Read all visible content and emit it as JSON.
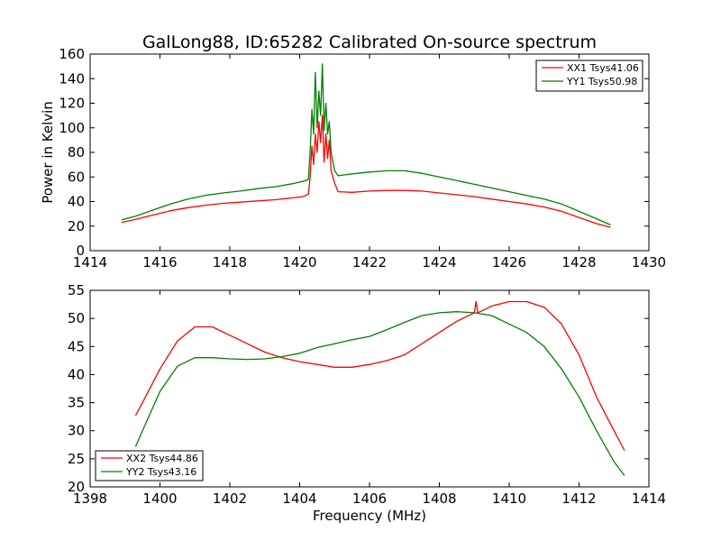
{
  "chart_data": [
    {
      "type": "line",
      "title": "GalLong88, ID:65282 Calibrated On-source spectrum",
      "xlabel": "",
      "ylabel": "Power in Kelvin",
      "xlim": [
        1414,
        1430
      ],
      "ylim": [
        0,
        160
      ],
      "xticks": [
        "1414",
        "1416",
        "1418",
        "1420",
        "1422",
        "1424",
        "1426",
        "1428",
        "1430"
      ],
      "yticks": [
        "0",
        "20",
        "40",
        "60",
        "80",
        "100",
        "120",
        "140",
        "160"
      ],
      "grid": false,
      "legend_position": "top-right",
      "series": [
        {
          "name": "XX1 Tsys41.06",
          "color": "#ff0000",
          "points": [
            [
              1414.9,
              23
            ],
            [
              1415.3,
              25.5
            ],
            [
              1415.8,
              29
            ],
            [
              1416.3,
              32.5
            ],
            [
              1416.8,
              35
            ],
            [
              1417.3,
              37
            ],
            [
              1417.8,
              38.5
            ],
            [
              1418.3,
              39.5
            ],
            [
              1418.8,
              40.5
            ],
            [
              1419.3,
              41.5
            ],
            [
              1419.8,
              43
            ],
            [
              1420.1,
              44
            ],
            [
              1420.25,
              46
            ],
            [
              1420.3,
              60
            ],
            [
              1420.35,
              85
            ],
            [
              1420.4,
              70
            ],
            [
              1420.45,
              95
            ],
            [
              1420.5,
              80
            ],
            [
              1420.55,
              105
            ],
            [
              1420.6,
              88
            ],
            [
              1420.65,
              110
            ],
            [
              1420.7,
              72
            ],
            [
              1420.75,
              95
            ],
            [
              1420.8,
              75
            ],
            [
              1420.85,
              90
            ],
            [
              1420.9,
              65
            ],
            [
              1421.0,
              55
            ],
            [
              1421.1,
              48
            ],
            [
              1421.5,
              47.5
            ],
            [
              1422.0,
              48.5
            ],
            [
              1422.5,
              49
            ],
            [
              1423.0,
              49
            ],
            [
              1423.5,
              48.5
            ],
            [
              1424.0,
              47
            ],
            [
              1424.5,
              45.5
            ],
            [
              1425.0,
              44
            ],
            [
              1425.5,
              42
            ],
            [
              1426.0,
              40
            ],
            [
              1426.5,
              38
            ],
            [
              1427.0,
              35.5
            ],
            [
              1427.5,
              32
            ],
            [
              1428.0,
              27
            ],
            [
              1428.5,
              22
            ],
            [
              1428.9,
              19
            ]
          ]
        },
        {
          "name": "YY1 Tsys50.98",
          "color": "#008000",
          "points": [
            [
              1414.9,
              25
            ],
            [
              1415.3,
              28
            ],
            [
              1415.8,
              33
            ],
            [
              1416.3,
              38
            ],
            [
              1416.8,
              42
            ],
            [
              1417.3,
              45
            ],
            [
              1417.8,
              47
            ],
            [
              1418.3,
              48.5
            ],
            [
              1418.8,
              50.5
            ],
            [
              1419.3,
              52
            ],
            [
              1419.8,
              54.5
            ],
            [
              1420.1,
              56.5
            ],
            [
              1420.25,
              58
            ],
            [
              1420.3,
              80
            ],
            [
              1420.35,
              115
            ],
            [
              1420.4,
              95
            ],
            [
              1420.45,
              145
            ],
            [
              1420.5,
              100
            ],
            [
              1420.55,
              130
            ],
            [
              1420.6,
              110
            ],
            [
              1420.65,
              152
            ],
            [
              1420.7,
              98
            ],
            [
              1420.75,
              120
            ],
            [
              1420.8,
              95
            ],
            [
              1420.85,
              105
            ],
            [
              1420.9,
              80
            ],
            [
              1421.0,
              65
            ],
            [
              1421.1,
              61
            ],
            [
              1421.5,
              62.5
            ],
            [
              1422.0,
              64
            ],
            [
              1422.5,
              65
            ],
            [
              1423.0,
              65
            ],
            [
              1423.5,
              63
            ],
            [
              1424.0,
              60
            ],
            [
              1424.5,
              57
            ],
            [
              1425.0,
              54
            ],
            [
              1425.5,
              51
            ],
            [
              1426.0,
              48
            ],
            [
              1426.5,
              45
            ],
            [
              1427.0,
              42
            ],
            [
              1427.5,
              38
            ],
            [
              1428.0,
              32
            ],
            [
              1428.5,
              26
            ],
            [
              1428.9,
              21
            ]
          ]
        }
      ]
    },
    {
      "type": "line",
      "title": "",
      "xlabel": "Frequency (MHz)",
      "ylabel": "",
      "xlim": [
        1398,
        1414
      ],
      "ylim": [
        20,
        55
      ],
      "xticks": [
        "1398",
        "1400",
        "1402",
        "1404",
        "1406",
        "1408",
        "1410",
        "1412",
        "1414"
      ],
      "yticks": [
        "20",
        "25",
        "30",
        "35",
        "40",
        "45",
        "50",
        "55"
      ],
      "grid": false,
      "legend_position": "bottom-left",
      "series": [
        {
          "name": "XX2 Tsys44.86",
          "color": "#ff0000",
          "points": [
            [
              1399.3,
              32.7
            ],
            [
              1399.5,
              35
            ],
            [
              1400.0,
              41
            ],
            [
              1400.5,
              46
            ],
            [
              1401.0,
              48.5
            ],
            [
              1401.5,
              48.5
            ],
            [
              1402.0,
              47
            ],
            [
              1402.5,
              45.5
            ],
            [
              1403.0,
              44
            ],
            [
              1403.5,
              43
            ],
            [
              1404.0,
              42.3
            ],
            [
              1404.5,
              41.8
            ],
            [
              1405.0,
              41.3
            ],
            [
              1405.5,
              41.3
            ],
            [
              1406.0,
              41.8
            ],
            [
              1406.5,
              42.5
            ],
            [
              1407.0,
              43.5
            ],
            [
              1407.5,
              45.5
            ],
            [
              1408.0,
              47.5
            ],
            [
              1408.5,
              49.5
            ],
            [
              1409.0,
              51
            ],
            [
              1409.05,
              53
            ],
            [
              1409.1,
              51
            ],
            [
              1409.5,
              52.2
            ],
            [
              1410.0,
              53
            ],
            [
              1410.5,
              53
            ],
            [
              1411.0,
              52
            ],
            [
              1411.5,
              49
            ],
            [
              1412.0,
              43.5
            ],
            [
              1412.5,
              36
            ],
            [
              1413.0,
              30
            ],
            [
              1413.3,
              26.5
            ]
          ]
        },
        {
          "name": "YY2 Tsys43.16",
          "color": "#008000",
          "points": [
            [
              1399.3,
              27.2
            ],
            [
              1399.5,
              30
            ],
            [
              1400.0,
              37
            ],
            [
              1400.5,
              41.5
            ],
            [
              1401.0,
              43
            ],
            [
              1401.5,
              43
            ],
            [
              1402.0,
              42.8
            ],
            [
              1402.5,
              42.7
            ],
            [
              1403.0,
              42.8
            ],
            [
              1403.5,
              43.2
            ],
            [
              1404.0,
              43.8
            ],
            [
              1404.5,
              44.8
            ],
            [
              1405.0,
              45.5
            ],
            [
              1405.5,
              46.2
            ],
            [
              1406.0,
              46.8
            ],
            [
              1406.5,
              48
            ],
            [
              1407.0,
              49.3
            ],
            [
              1407.5,
              50.5
            ],
            [
              1408.0,
              51
            ],
            [
              1408.5,
              51.2
            ],
            [
              1409.0,
              51
            ],
            [
              1409.5,
              50.5
            ],
            [
              1410.0,
              49
            ],
            [
              1410.5,
              47.5
            ],
            [
              1411.0,
              45
            ],
            [
              1411.5,
              41
            ],
            [
              1412.0,
              36
            ],
            [
              1412.5,
              30
            ],
            [
              1413.0,
              24.5
            ],
            [
              1413.3,
              22
            ]
          ]
        }
      ]
    }
  ]
}
